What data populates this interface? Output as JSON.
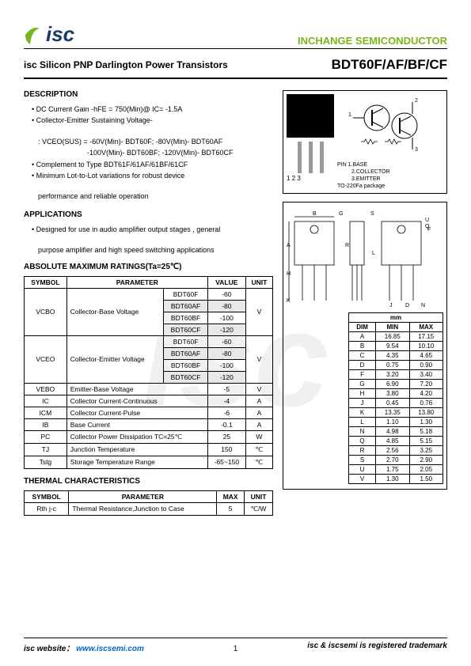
{
  "header": {
    "logo_text": "isc",
    "brand": "INCHANGE SEMICONDUCTOR"
  },
  "title": {
    "product": "isc Silicon PNP Darlington Power Transistors",
    "part": "BDT60F/AF/BF/CF"
  },
  "description": {
    "heading": "DESCRIPTION",
    "items": [
      "DC Current Gain -hFE = 750(Min)@ IC= -1.5A",
      "Collector-Emitter Sustaining Voltage-"
    ],
    "sub1": ": VCEO(SUS) = -60V(Min)- BDT60F; -80V(Min)- BDT60AF",
    "sub2": "-100V(Min)- BDT60BF; -120V(Min)- BDT60CF",
    "items2": [
      "Complement to Type BDT61F/61AF/61BF/61CF",
      "Minimum Lot-to-Lot variations for robust device"
    ],
    "sub3": "performance and reliable operation"
  },
  "applications": {
    "heading": "APPLICATIONS",
    "item": "Designed for use in audio amplifier output stages , general",
    "item2": "purpose amplifier and high speed switching applications"
  },
  "ratings": {
    "heading": "ABSOLUTE MAXIMUM RATINGS(Ta=25℃)",
    "cols": [
      "SYMBOL",
      "PARAMETER",
      "VALUE",
      "UNIT"
    ],
    "vcbo": {
      "sym": "VCBO",
      "param": "Collector-Base Voltage",
      "unit": "V",
      "rows": [
        [
          "BDT60F",
          "-60"
        ],
        [
          "BDT60AF",
          "-80"
        ],
        [
          "BDT60BF",
          "-100"
        ],
        [
          "BDT60CF",
          "-120"
        ]
      ]
    },
    "vceo": {
      "sym": "VCEO",
      "param": "Collector-Emitter Voltage",
      "unit": "V",
      "rows": [
        [
          "BDT60F",
          "-60"
        ],
        [
          "BDT60AF",
          "-80"
        ],
        [
          "BDT60BF",
          "-100"
        ],
        [
          "BDT60CF",
          "-120"
        ]
      ]
    },
    "simple": [
      {
        "sym": "VEBO",
        "param": "Emitter-Base Voltage",
        "val": "-5",
        "unit": "V"
      },
      {
        "sym": "IC",
        "param": "Collector Current-Continuous",
        "val": "-4",
        "unit": "A"
      },
      {
        "sym": "ICM",
        "param": "Collector Current-Pulse",
        "val": "-6",
        "unit": "A"
      },
      {
        "sym": "IB",
        "param": "Base Current",
        "val": "-0.1",
        "unit": "A"
      },
      {
        "sym": "PC",
        "param": "Collector Power Dissipation TC=25℃",
        "val": "25",
        "unit": "W"
      },
      {
        "sym": "TJ",
        "param": "Junction Temperature",
        "val": "150",
        "unit": "℃"
      },
      {
        "sym": "Tstg",
        "param": "Storage Temperature Range",
        "val": "-65~150",
        "unit": "℃"
      }
    ]
  },
  "thermal": {
    "heading": "THERMAL CHARACTERISTICS",
    "cols": [
      "SYMBOL",
      "PARAMETER",
      "MAX",
      "UNIT"
    ],
    "row": {
      "sym": "Rth j-c",
      "param": "Thermal Resistance,Junction to Case",
      "max": "5",
      "unit": "℃/W"
    }
  },
  "package": {
    "pin_label": "PIN",
    "pins": "1.BASE",
    "pin2": "2.COLLECTOR",
    "pin3": "3.EMITTER",
    "pkg": "TO-220Fa package",
    "leads": "1  2  3"
  },
  "dims": {
    "hdr": "mm",
    "cols": [
      "DIM",
      "MIN",
      "MAX"
    ],
    "rows": [
      [
        "A",
        "16.85",
        "17.15"
      ],
      [
        "B",
        "9.54",
        "10.10"
      ],
      [
        "C",
        "4.35",
        "4.65"
      ],
      [
        "D",
        "0.75",
        "0.90"
      ],
      [
        "F",
        "3.20",
        "3.40"
      ],
      [
        "G",
        "6.90",
        "7.20"
      ],
      [
        "H",
        "3.80",
        "4.20"
      ],
      [
        "J",
        "0.45",
        "0.76"
      ],
      [
        "K",
        "13.35",
        "13.80"
      ],
      [
        "L",
        "1.10",
        "1.30"
      ],
      [
        "N",
        "4.98",
        "5.18"
      ],
      [
        "Q",
        "4.85",
        "5.15"
      ],
      [
        "R",
        "2.56",
        "3.25"
      ],
      [
        "S",
        "2.70",
        "2.90"
      ],
      [
        "U",
        "1.75",
        "2.05"
      ],
      [
        "V",
        "1.30",
        "1.50"
      ]
    ]
  },
  "footer": {
    "left_label": "isc website：",
    "url": "www.iscsemi.com",
    "right": "isc & iscsemi is registered trademark",
    "page": "1"
  },
  "watermark": "isc"
}
